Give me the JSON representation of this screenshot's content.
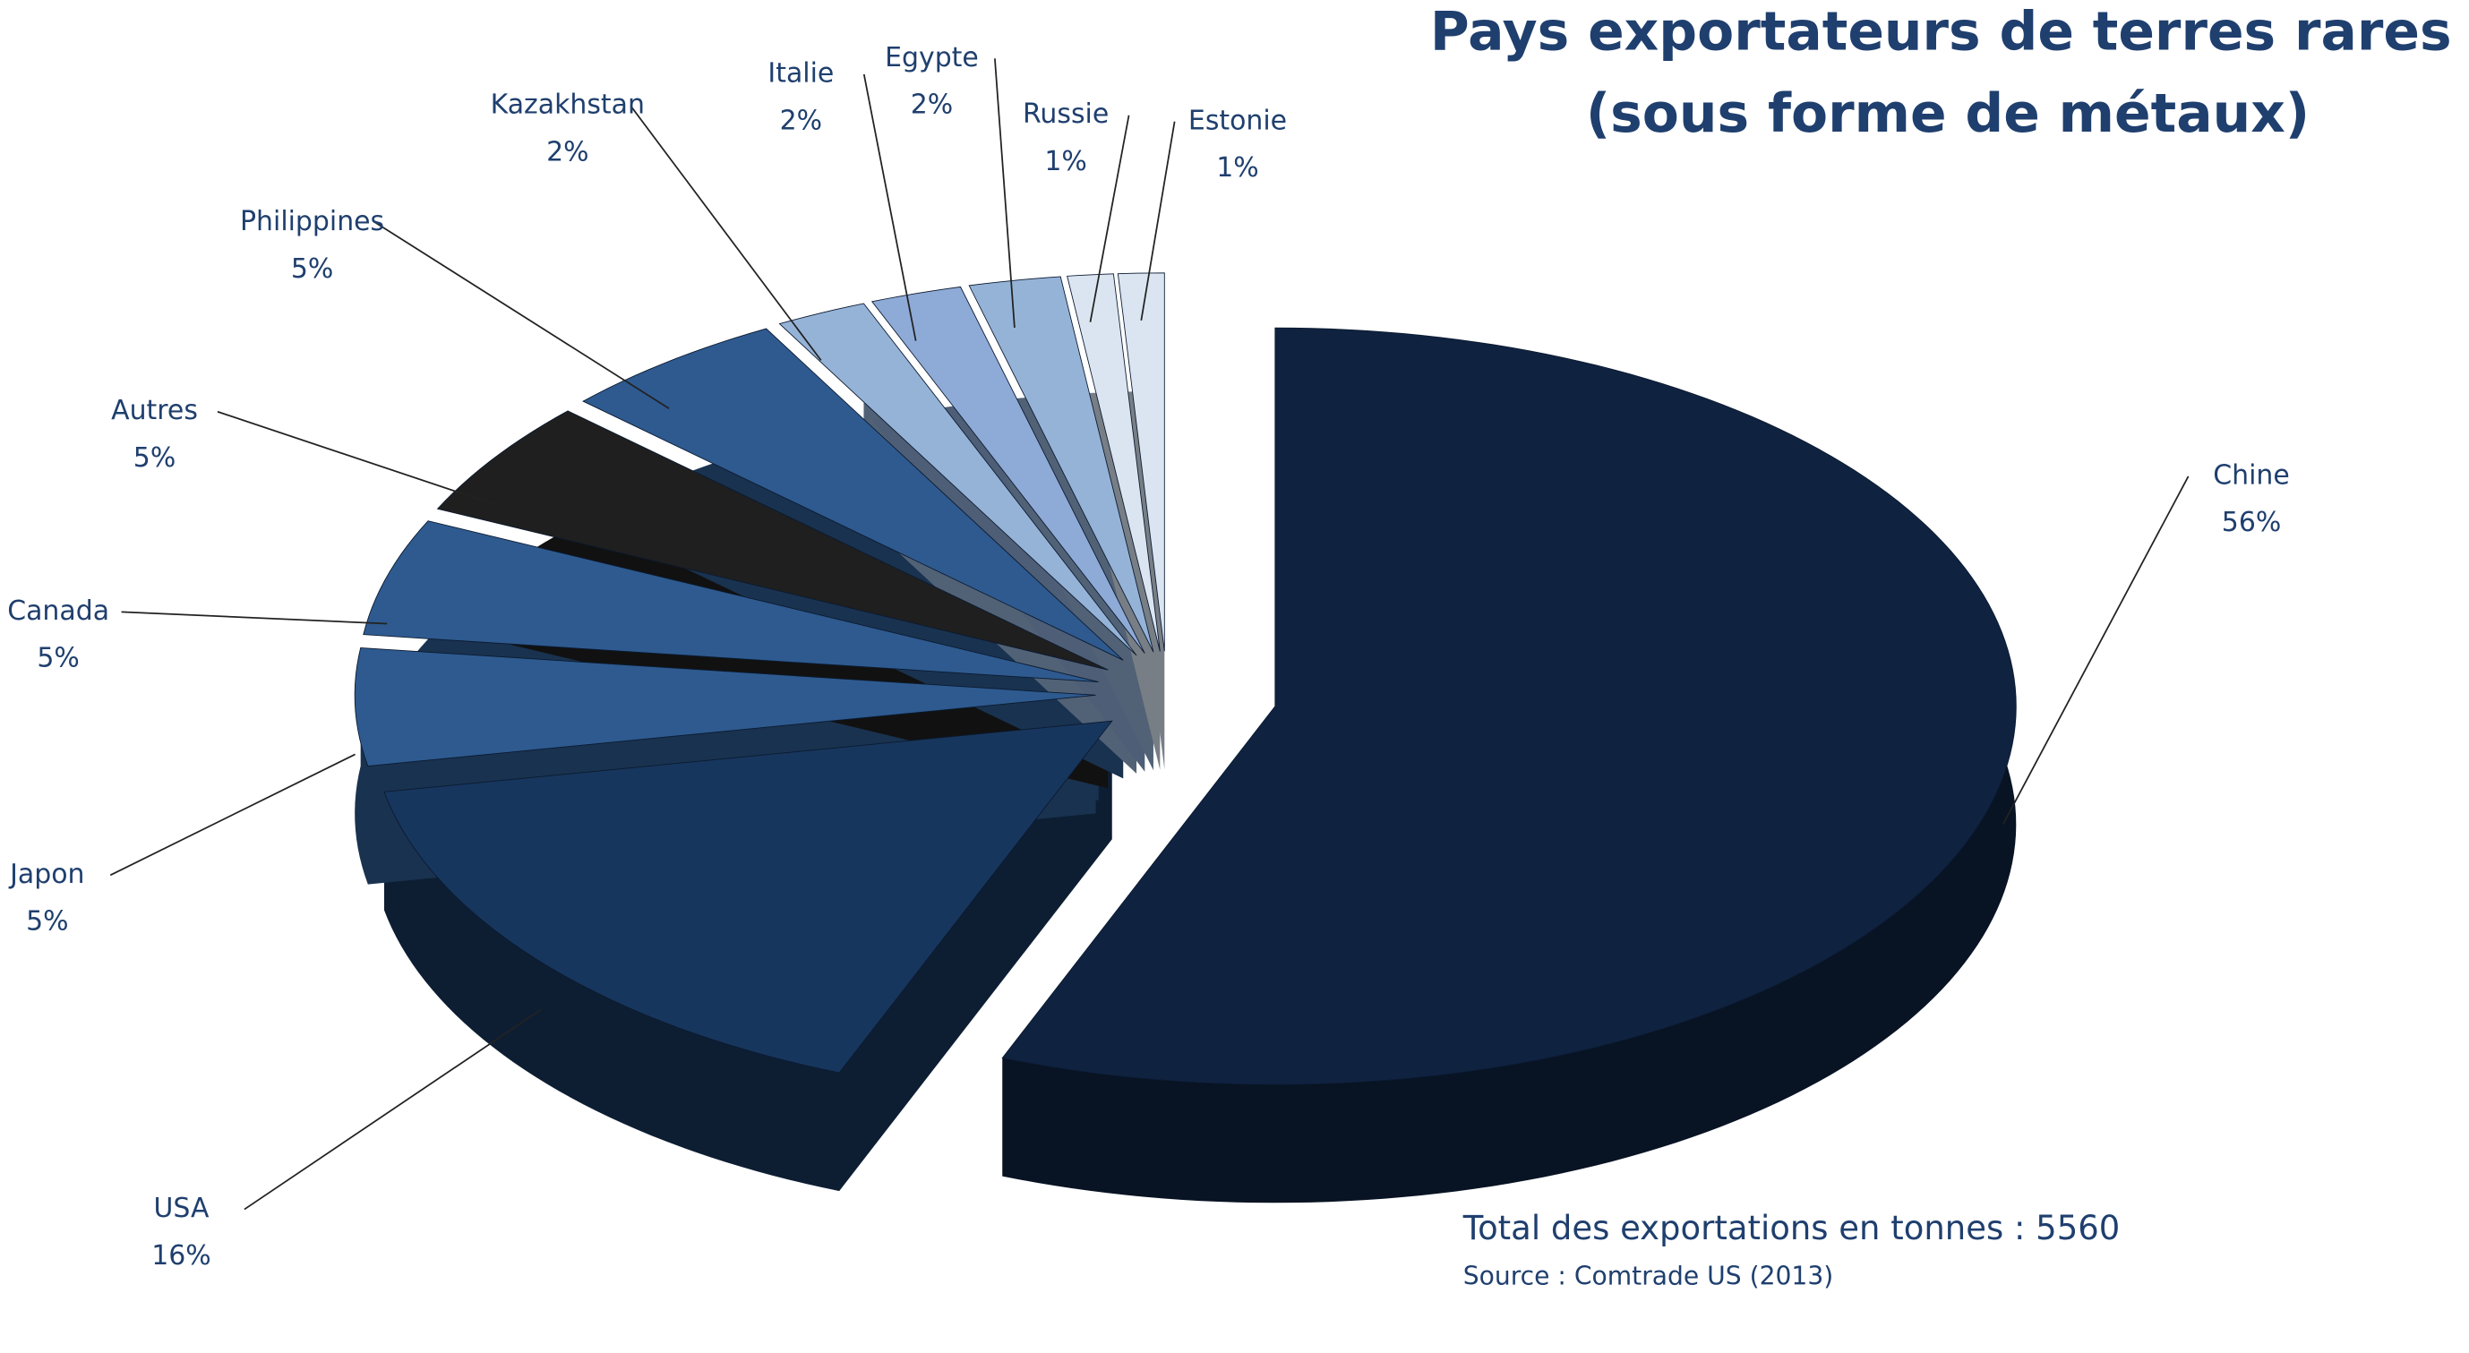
{
  "chart_data": {
    "type": "pie",
    "title": "Pays exportateurs de terres rares",
    "subtitle": "(sous forme de métaux)",
    "categories": [
      "Chine",
      "USA",
      "Japon",
      "Canada",
      "Autres",
      "Philippines",
      "Kazakhstan",
      "Italie",
      "Egypte",
      "Russie",
      "Estonie"
    ],
    "values": [
      56,
      16,
      5,
      5,
      5,
      5,
      2,
      2,
      2,
      1,
      1
    ],
    "value_labels": [
      "56%",
      "16%",
      "5%",
      "5%",
      "5%",
      "5%",
      "2%",
      "2%",
      "2%",
      "1%",
      "1%"
    ],
    "colors": [
      "#0f2240",
      "#17365d",
      "#2e5a8f",
      "#2e5a8f",
      "#1f1f1f",
      "#2e5a8f",
      "#95b3d7",
      "#8eaad6",
      "#95b3d7",
      "#dbe5f1",
      "#dbe5f1"
    ],
    "annotations": [
      "Total des exportations en tonnes : 5560",
      "Source : Comtrade US  (2013)"
    ]
  }
}
